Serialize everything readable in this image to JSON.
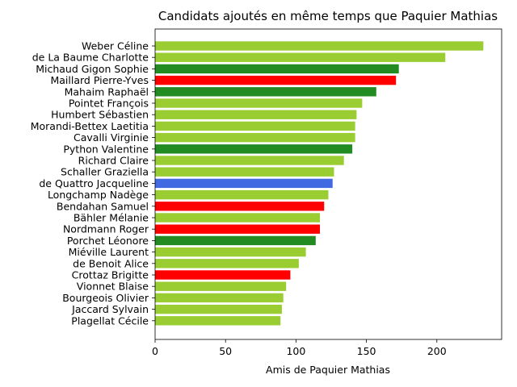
{
  "chart_data": {
    "type": "bar",
    "orientation": "horizontal",
    "title": "Candidats ajoutés en même temps que Paquier Mathias",
    "xlabel": "Amis de Paquier Mathias",
    "ylabel": "",
    "xlim": [
      0,
      246
    ],
    "xticks": [
      0,
      50,
      100,
      150,
      200
    ],
    "grid": false,
    "categories": [
      "Weber Céline",
      "de La Baume Charlotte",
      "Michaud Gigon Sophie",
      "Maillard Pierre-Yves",
      "Mahaim Raphaël",
      "Pointet François",
      "Humbert Sébastien",
      "Morandi-Bettex Laetitia",
      "Cavalli Virginie",
      "Python Valentine",
      "Richard Claire",
      "Schaller Graziella",
      "de Quattro Jacqueline",
      "Longchamp Nadège",
      "Bendahan Samuel",
      "Bähler Mélanie",
      "Nordmann Roger",
      "Porchet Léonore",
      "Miéville Laurent",
      "de Benoit Alice",
      "Crottaz Brigitte",
      "Vionnet Blaise",
      "Bourgeois Olivier",
      "Jaccard Sylvain",
      "Plagellat Cécile"
    ],
    "values": [
      233,
      206,
      173,
      171,
      157,
      147,
      143,
      142,
      142,
      140,
      134,
      127,
      126,
      123,
      120,
      117,
      117,
      114,
      107,
      102,
      96,
      93,
      91,
      90,
      89
    ],
    "colors": [
      "#9acd32",
      "#9acd32",
      "#228b22",
      "#ff0000",
      "#228b22",
      "#9acd32",
      "#9acd32",
      "#9acd32",
      "#9acd32",
      "#228b22",
      "#9acd32",
      "#9acd32",
      "#4169e1",
      "#9acd32",
      "#ff0000",
      "#9acd32",
      "#ff0000",
      "#228b22",
      "#9acd32",
      "#9acd32",
      "#ff0000",
      "#9acd32",
      "#9acd32",
      "#9acd32",
      "#9acd32"
    ]
  }
}
